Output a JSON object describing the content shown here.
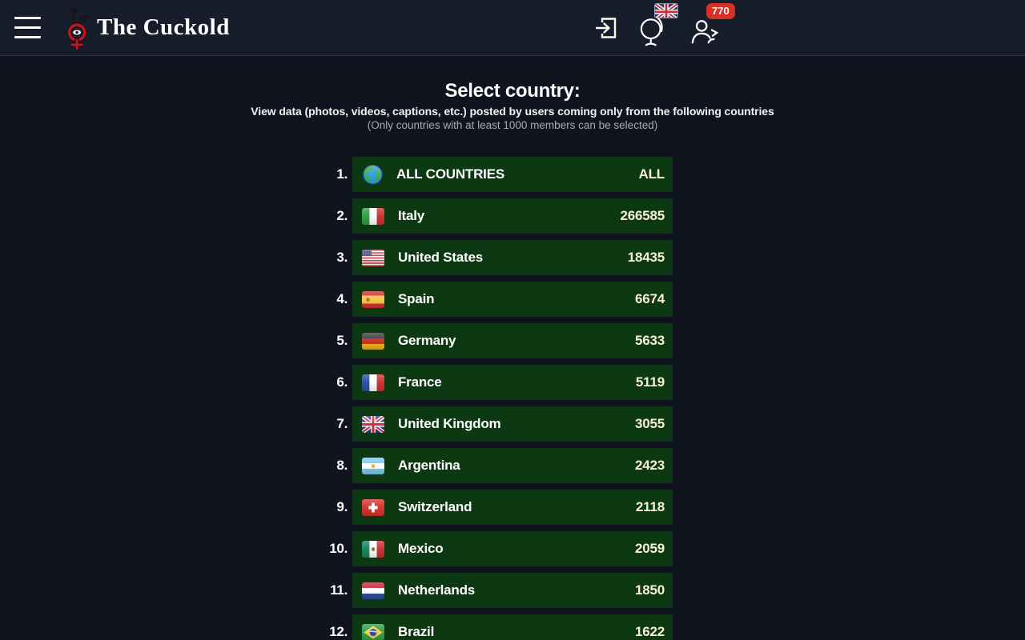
{
  "colors": {
    "header_bg": "#171d2a",
    "body_bg": "#0f141e",
    "header_border": "#2e3542",
    "row_green": "#0d3912",
    "count_cream": "#f7f1d5",
    "badge_red": "#d93025",
    "note_gray": "#a6abb3"
  },
  "header": {
    "brand_title": "The Cuckold",
    "actions": {
      "members_badge_count": "770",
      "language_flag": "uk"
    }
  },
  "intro": {
    "title": "Select country:",
    "subtitle": "View data (photos, videos, captions, etc.) posted by users coming only from the following countries",
    "note": "(Only countries with at least 1000 members can be selected)"
  },
  "list": {
    "items": [
      {
        "rank": "1.",
        "name": "ALL COUNTRIES",
        "value": "ALL",
        "flag": "globe"
      },
      {
        "rank": "2.",
        "name": "Italy",
        "value": "266585",
        "flag": "italy"
      },
      {
        "rank": "3.",
        "name": "United States",
        "value": "18435",
        "flag": "us"
      },
      {
        "rank": "4.",
        "name": "Spain",
        "value": "6674",
        "flag": "spain"
      },
      {
        "rank": "5.",
        "name": "Germany",
        "value": "5633",
        "flag": "germany"
      },
      {
        "rank": "6.",
        "name": "France",
        "value": "5119",
        "flag": "france"
      },
      {
        "rank": "7.",
        "name": "United Kingdom",
        "value": "3055",
        "flag": "uk"
      },
      {
        "rank": "8.",
        "name": "Argentina",
        "value": "2423",
        "flag": "argentina"
      },
      {
        "rank": "9.",
        "name": "Switzerland",
        "value": "2118",
        "flag": "switzerland"
      },
      {
        "rank": "10.",
        "name": "Mexico",
        "value": "2059",
        "flag": "mexico"
      },
      {
        "rank": "11.",
        "name": "Netherlands",
        "value": "1850",
        "flag": "netherlands"
      },
      {
        "rank": "12.",
        "name": "Brazil",
        "value": "1622",
        "flag": "brazil"
      }
    ]
  },
  "flags": {
    "globe": {
      "kind": "globe",
      "ocean": "#2f9df4",
      "land": "#3faf4b",
      "outline": "#1565c0"
    },
    "italy": {
      "kind": "v",
      "colors": [
        "#2f9e44",
        "#ffffff",
        "#d02e2e"
      ]
    },
    "us": {
      "kind": "us",
      "stripe_red": "#c43c44",
      "stripe_white": "#ffffff",
      "canton": "#3c3b6e"
    },
    "spain": {
      "kind": "h",
      "colors": [
        "#d03030",
        "#f7c648",
        "#d03030"
      ],
      "heights": [
        5.5,
        10,
        5.5
      ],
      "emblem": {
        "x": 8,
        "color": "#b06a3c"
      }
    },
    "germany": {
      "kind": "h",
      "colors": [
        "#3a3a3a",
        "#cc2b29",
        "#efb31a"
      ],
      "heights": [
        7,
        7,
        7
      ]
    },
    "france": {
      "kind": "v",
      "colors": [
        "#2a4fa0",
        "#ffffff",
        "#d02e2e"
      ]
    },
    "uk": {
      "kind": "uk",
      "blue": "#233c8c",
      "red": "#cf2b36",
      "white": "#ffffff"
    },
    "argentina": {
      "kind": "h",
      "colors": [
        "#7fc6ea",
        "#ffffff",
        "#7fc6ea"
      ],
      "heights": [
        7,
        7,
        7
      ],
      "sun": {
        "color": "#f2b22b"
      }
    },
    "switzerland": {
      "kind": "ch",
      "red": "#d8302a",
      "white": "#ffffff"
    },
    "mexico": {
      "kind": "v",
      "colors": [
        "#17835c",
        "#ffffff",
        "#cc2e33"
      ],
      "emblem": {
        "x": 15,
        "color": "#8a6b43"
      }
    },
    "netherlands": {
      "kind": "h",
      "colors": [
        "#c32839",
        "#ffffff",
        "#2a4a9e"
      ],
      "heights": [
        7,
        7,
        7
      ]
    },
    "brazil": {
      "kind": "brazil",
      "green": "#2f9e44",
      "yellow": "#f7cf46",
      "blue": "#2a4fa0"
    }
  }
}
